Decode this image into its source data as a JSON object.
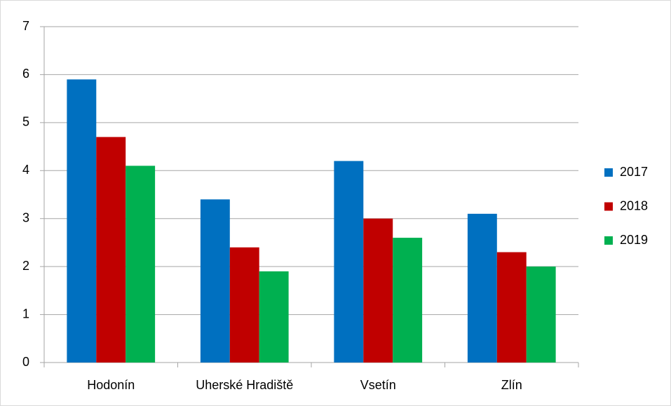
{
  "chart_data": {
    "type": "bar",
    "categories": [
      "Hodonín",
      "Uherské Hradiště",
      "Vsetín",
      "Zlín"
    ],
    "series": [
      {
        "name": "2017",
        "color": "#0070c0",
        "values": [
          5.9,
          3.4,
          4.2,
          3.1
        ]
      },
      {
        "name": "2018",
        "color": "#c00000",
        "values": [
          4.7,
          2.4,
          3.0,
          2.3
        ]
      },
      {
        "name": "2019",
        "color": "#00b050",
        "values": [
          4.1,
          1.9,
          2.6,
          2.0
        ]
      }
    ],
    "ylim": [
      0,
      7
    ],
    "yticks": [
      0,
      1,
      2,
      3,
      4,
      5,
      6,
      7
    ],
    "grid": true,
    "legend": "right"
  }
}
